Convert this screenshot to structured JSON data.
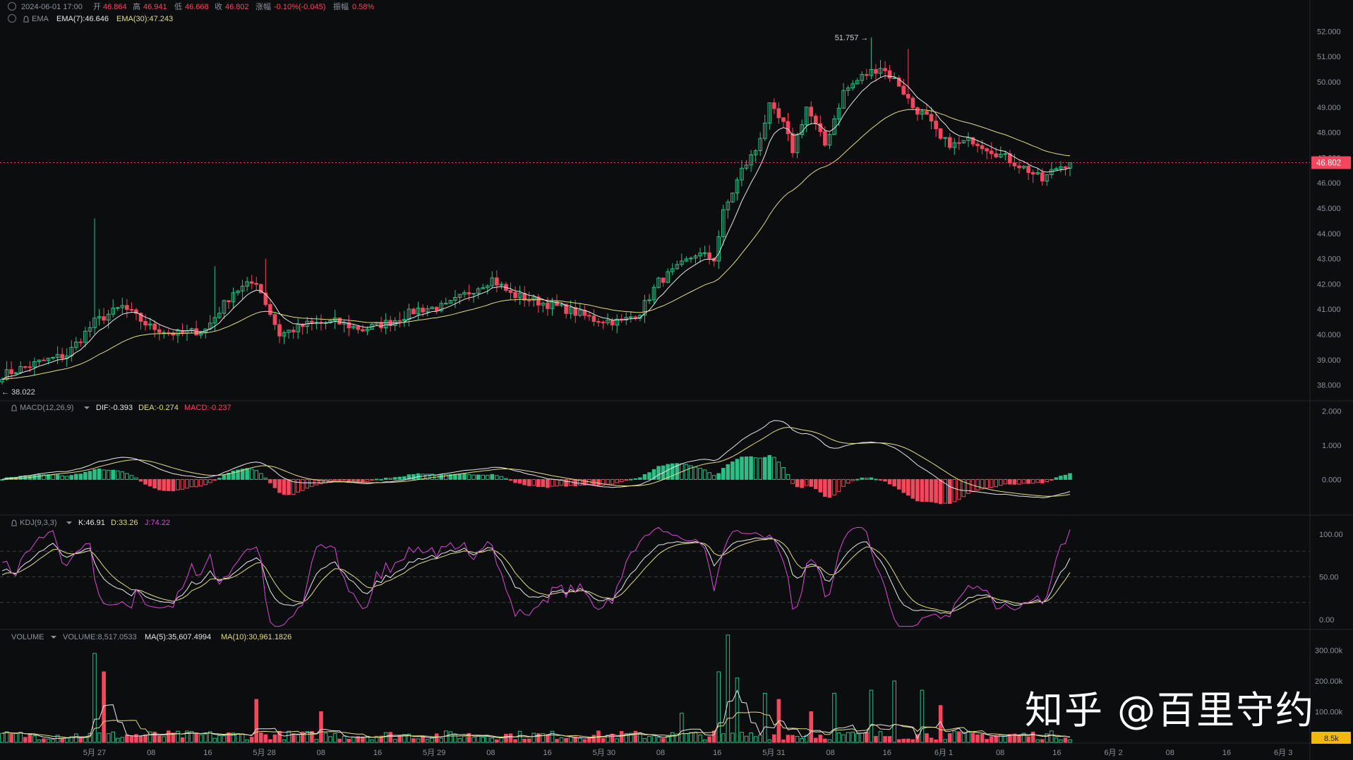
{
  "header": {
    "datetime": "2024-06-01 17:00",
    "ohlc": [
      {
        "label": "开",
        "value": "46.864"
      },
      {
        "label": "高",
        "value": "46.941"
      },
      {
        "label": "低",
        "value": "46.668"
      },
      {
        "label": "收",
        "value": "46.802"
      },
      {
        "label": "涨幅",
        "value": "-0.10%(-0.045)"
      },
      {
        "label": "振幅",
        "value": "0.58%"
      }
    ],
    "ema_label": "EMA",
    "ema7": "EMA(7):46.646",
    "ema30": "EMA(30):47.243"
  },
  "macd": {
    "label": "MACD(12,26,9)",
    "dif": "DIF:-0.393",
    "dea": "DEA:-0.274",
    "macd": "MACD:-0.237"
  },
  "kdj": {
    "label": "KDJ(9,3,3)",
    "k": "K:46.91",
    "d": "D:33.26",
    "j": "J:74.22"
  },
  "volume": {
    "label": "VOLUME",
    "vol": "VOLUME:8,517.0533",
    "ma5": "MA(5):35,607.4994",
    "ma10": "MA(10):30,961.1826"
  },
  "watermark": "知乎 @百里守约",
  "colors": {
    "up": "#2ebd85",
    "down": "#f6465d",
    "ema7": "#e8e8e8",
    "ema30": "#e4dd82",
    "k": "#e8e8e8",
    "d": "#e4dd82",
    "j": "#d84ad8",
    "bg": "#0c0d0f"
  },
  "chart_data": {
    "type": "candlestick",
    "price_axis": {
      "ticks": [
        "52.000",
        "51.000",
        "50.000",
        "49.000",
        "48.000",
        "47.000",
        "46.000",
        "45.000",
        "44.000",
        "43.000",
        "42.000",
        "41.000",
        "40.000",
        "39.000",
        "38.000"
      ],
      "range": [
        37.6,
        52.4
      ]
    },
    "last_price": "46.802",
    "high_marker": "51.757 →",
    "low_marker": "← 38.022",
    "high_value": 51.757,
    "low_value": 38.022,
    "x_labels": [
      "5月 27",
      "08",
      "16",
      "5月 28",
      "08",
      "16",
      "5月 29",
      "08",
      "16",
      "5月 30",
      "08",
      "16",
      "5月 31",
      "08",
      "16",
      "6月 1",
      "08",
      "16",
      "6月 2",
      "08",
      "16",
      "6月 3"
    ],
    "macd_axis": {
      "ticks": [
        "2.000",
        "1.000",
        "0.000"
      ],
      "range": [
        -1.0,
        2.15
      ]
    },
    "kdj_axis": {
      "ticks": [
        "100.00",
        "50.00",
        "0.00"
      ],
      "range": [
        -10,
        110
      ]
    },
    "volume_axis": {
      "ticks": [
        "300.00k",
        "200.00k",
        "100.00k"
      ],
      "range": [
        0,
        345000
      ]
    },
    "volume_last": "8.5k",
    "price_anchors": [
      [
        0,
        38.4
      ],
      [
        8,
        38.9
      ],
      [
        14,
        39.2
      ],
      [
        20,
        40.5
      ],
      [
        26,
        41.1
      ],
      [
        32,
        40.3
      ],
      [
        38,
        40.0
      ],
      [
        44,
        40.2
      ],
      [
        50,
        41.7
      ],
      [
        55,
        42.1
      ],
      [
        60,
        40.0
      ],
      [
        66,
        40.4
      ],
      [
        72,
        40.5
      ],
      [
        78,
        40.2
      ],
      [
        84,
        40.5
      ],
      [
        90,
        41.0
      ],
      [
        96,
        41.1
      ],
      [
        102,
        41.8
      ],
      [
        106,
        42.2
      ],
      [
        110,
        41.6
      ],
      [
        116,
        41.3
      ],
      [
        122,
        41.0
      ],
      [
        128,
        40.6
      ],
      [
        134,
        40.5
      ],
      [
        138,
        40.9
      ],
      [
        142,
        42.1
      ],
      [
        146,
        42.6
      ],
      [
        150,
        43.2
      ],
      [
        154,
        43.0
      ],
      [
        156,
        44.8
      ],
      [
        160,
        46.5
      ],
      [
        163,
        47.3
      ],
      [
        166,
        49.0
      ],
      [
        169,
        48.3
      ],
      [
        171,
        47.3
      ],
      [
        174,
        49.0
      ],
      [
        178,
        47.5
      ],
      [
        182,
        49.6
      ],
      [
        186,
        50.2
      ],
      [
        190,
        50.6
      ],
      [
        194,
        49.9
      ],
      [
        197,
        49.0
      ],
      [
        200,
        48.6
      ],
      [
        203,
        47.7
      ],
      [
        206,
        47.5
      ],
      [
        210,
        47.7
      ],
      [
        214,
        47.3
      ],
      [
        218,
        46.9
      ],
      [
        222,
        46.5
      ],
      [
        225,
        46.1
      ],
      [
        228,
        46.6
      ],
      [
        231,
        46.8
      ]
    ],
    "volume_spikes": {
      "20": 290000,
      "22": 230000,
      "55": 140000,
      "69": 100000,
      "147": 95000,
      "155": 230000,
      "157": 350000,
      "159": 210000,
      "165": 160000,
      "168": 140000,
      "175": 100000,
      "180": 160000,
      "188": 170000,
      "193": 200000,
      "199": 170000,
      "203": 120000
    },
    "series_count": 232
  }
}
